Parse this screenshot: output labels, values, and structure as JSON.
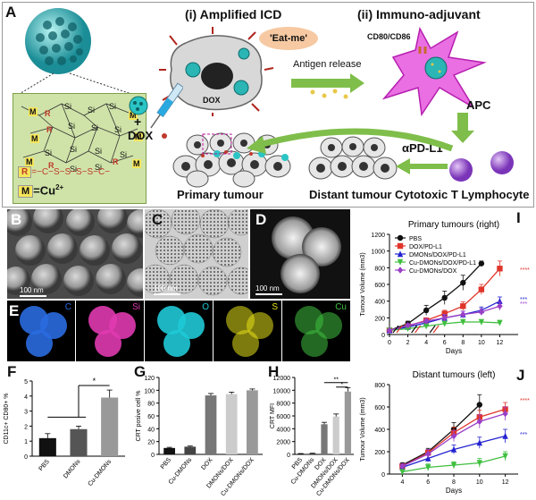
{
  "colors": {
    "cyan": "#2bc4c4",
    "orange": "#f2a44a",
    "pink": "#e63fe0",
    "green": "#7fbe4a",
    "purple": "#9a4fd8",
    "red": "#e0352b",
    "blue": "#2323d0"
  },
  "panelA": {
    "label": "A",
    "step1": "(i) Amplified ICD",
    "step2": "(ii) Immuno-adjuvant",
    "eat_me": "'Eat-me'",
    "antigen": "Antigen release",
    "cd80": "CD80/CD86",
    "dox_cell": "DOX",
    "apc": "APC",
    "plus": "+",
    "dox": "DOX",
    "apdl1": "αPD-L1",
    "primary": "Primary tumour",
    "distant": "Distant tumour",
    "ctl": "Cytotoxic T Lymphocyte",
    "legend_r": "R",
    "legend_r_formula": "=−C−S−S−S−S−C−",
    "legend_m": "M",
    "legend_m_formula": "=Cu",
    "legend_m_sup": "2+",
    "struct_labels": [
      "M",
      "R",
      "Si",
      "Si",
      "Si",
      "M",
      "R",
      "Si",
      "Si",
      "Si",
      "M",
      "M",
      "Si",
      "Si",
      "Si",
      "M",
      "R",
      "Si",
      "Si",
      "R",
      "Si",
      "M"
    ]
  },
  "panelB": {
    "label": "B",
    "scale": "100 nm"
  },
  "panelC": {
    "label": "C",
    "scale": "100 nm"
  },
  "panelD": {
    "label": "D",
    "scale": "100 nm"
  },
  "panelE": {
    "label": "E",
    "channels": [
      "C",
      "Si",
      "O",
      "S",
      "Cu"
    ],
    "channel_colors": [
      "#2a6be0",
      "#e03ab0",
      "#1fc9d6",
      "#e6e01a",
      "#3fbf3f"
    ]
  },
  "panelF": {
    "label": "F",
    "sig": "*"
  },
  "panelG": {
    "label": "G"
  },
  "panelH": {
    "label": "H",
    "sig1": "**",
    "sig2": "*"
  },
  "panelI": {
    "label": "I",
    "sig": [
      "****",
      "***",
      "***"
    ]
  },
  "panelJ": {
    "label": "J",
    "sig": [
      "****",
      "***"
    ]
  },
  "chart_data": [
    {
      "id": "F",
      "type": "bar",
      "ylabel": "CD11c+ CD80+ %",
      "categories": [
        "PBS",
        "DMONs",
        "Cu-DMONs"
      ],
      "values": [
        1.2,
        1.8,
        3.9
      ],
      "errors": [
        0.3,
        0.2,
        0.5
      ],
      "ylim": [
        0,
        5
      ],
      "yticks": [
        0,
        1,
        2,
        3,
        4,
        5
      ],
      "colors": [
        "#111111",
        "#555555",
        "#999999"
      ]
    },
    {
      "id": "G",
      "type": "bar",
      "ylabel": "CRT posive cell %",
      "categories": [
        "PBS",
        "Cu-DMONs",
        "DOX",
        "DMONs/DOX",
        "Cu-DMONs/DOX"
      ],
      "values": [
        10,
        12,
        92,
        94,
        100
      ],
      "errors": [
        1,
        1,
        3,
        3,
        2
      ],
      "ylim": [
        0,
        120
      ],
      "yticks": [
        0,
        20,
        40,
        60,
        80,
        100,
        120
      ],
      "colors": [
        "#111111",
        "#444444",
        "#777777",
        "#cccccc",
        "#999999"
      ]
    },
    {
      "id": "H",
      "type": "bar",
      "ylabel": "CRT MFI",
      "categories": [
        "PBS",
        "Cu-DMONs",
        "DOX",
        "DMONs/DOX",
        "Cu-DMONs/DOX"
      ],
      "values": [
        100,
        150,
        4700,
        5900,
        9800
      ],
      "errors": [
        30,
        30,
        300,
        400,
        600
      ],
      "ylim": [
        0,
        12000
      ],
      "yticks": [
        0,
        2000,
        4000,
        6000,
        8000,
        10000,
        12000
      ],
      "colors": [
        "#111111",
        "#444444",
        "#777777",
        "#cccccc",
        "#999999"
      ]
    },
    {
      "id": "I",
      "type": "line",
      "title": "Primary tumours (right)",
      "xlabel": "Days",
      "ylabel": "Tumour Volume (mm3)",
      "xlim": [
        0,
        14
      ],
      "ylim": [
        0,
        1200
      ],
      "xticks": [
        0,
        2,
        4,
        6,
        8,
        10,
        12
      ],
      "yticks": [
        0,
        200,
        400,
        600,
        800,
        1000,
        1200
      ],
      "legend": "top-left",
      "series": [
        {
          "name": "PBS",
          "color": "#111111",
          "marker": "circle",
          "x": [
            0,
            2,
            4,
            6,
            8,
            10
          ],
          "y": [
            50,
            130,
            290,
            440,
            620,
            850
          ],
          "err": [
            10,
            30,
            60,
            80,
            90,
            30
          ]
        },
        {
          "name": "DOX/PD-L1",
          "color": "#e0352b",
          "marker": "square",
          "x": [
            0,
            2,
            4,
            6,
            8,
            10,
            12
          ],
          "y": [
            50,
            100,
            170,
            250,
            340,
            540,
            790
          ],
          "err": [
            10,
            20,
            30,
            40,
            50,
            60,
            90
          ]
        },
        {
          "name": "DMONs/DOX/PD-L1",
          "color": "#2323d0",
          "marker": "triangle",
          "x": [
            0,
            2,
            4,
            6,
            8,
            10,
            12
          ],
          "y": [
            50,
            90,
            140,
            200,
            240,
            290,
            400
          ],
          "err": [
            10,
            20,
            30,
            30,
            40,
            40,
            50
          ]
        },
        {
          "name": "Cu-DMONs/DOX/PD-L1",
          "color": "#3fbf3f",
          "marker": "triangle-down",
          "x": [
            0,
            2,
            4,
            6,
            8,
            10,
            12
          ],
          "y": [
            50,
            70,
            100,
            130,
            150,
            150,
            140
          ],
          "err": [
            10,
            15,
            20,
            25,
            30,
            30,
            30
          ]
        },
        {
          "name": "Cu-DMONs/DOX",
          "color": "#9a3fc8",
          "marker": "diamond",
          "x": [
            0,
            2,
            4,
            6,
            8,
            10,
            12
          ],
          "y": [
            50,
            110,
            160,
            200,
            240,
            270,
            340
          ],
          "err": [
            10,
            20,
            30,
            40,
            40,
            40,
            50
          ]
        }
      ]
    },
    {
      "id": "J",
      "type": "line",
      "title": "Distant tumours (left)",
      "xlabel": "Days",
      "ylabel": "Tumour Volume (mm3)",
      "xlim": [
        3,
        13
      ],
      "ylim": [
        0,
        800
      ],
      "xticks": [
        4,
        6,
        8,
        10,
        12
      ],
      "yticks": [
        0,
        200,
        400,
        600,
        800
      ],
      "series": [
        {
          "name": "PBS",
          "color": "#111111",
          "marker": "circle",
          "x": [
            4,
            6,
            8,
            10
          ],
          "y": [
            80,
            200,
            400,
            620
          ],
          "err": [
            20,
            30,
            60,
            90
          ]
        },
        {
          "name": "DOX/PD-L1",
          "color": "#e0352b",
          "marker": "square",
          "x": [
            4,
            6,
            8,
            10,
            12
          ],
          "y": [
            70,
            190,
            370,
            510,
            580
          ],
          "err": [
            20,
            30,
            50,
            60,
            60
          ]
        },
        {
          "name": "DMONs/DOX/PD-L1",
          "color": "#2323d0",
          "marker": "triangle",
          "x": [
            4,
            6,
            8,
            10,
            12
          ],
          "y": [
            60,
            140,
            220,
            280,
            340
          ],
          "err": [
            20,
            30,
            40,
            50,
            60
          ]
        },
        {
          "name": "Cu-DMONs/DOX/PD-L1",
          "color": "#3fbf3f",
          "marker": "triangle-down",
          "x": [
            4,
            6,
            8,
            10,
            12
          ],
          "y": [
            20,
            60,
            80,
            100,
            160
          ],
          "err": [
            20,
            30,
            30,
            40,
            40
          ]
        },
        {
          "name": "Cu-DMONs/DOX",
          "color": "#9a3fc8",
          "marker": "diamond",
          "x": [
            4,
            6,
            8,
            10,
            12
          ],
          "y": [
            70,
            180,
            340,
            470,
            540
          ],
          "err": [
            20,
            40,
            50,
            60,
            60
          ]
        }
      ]
    }
  ]
}
